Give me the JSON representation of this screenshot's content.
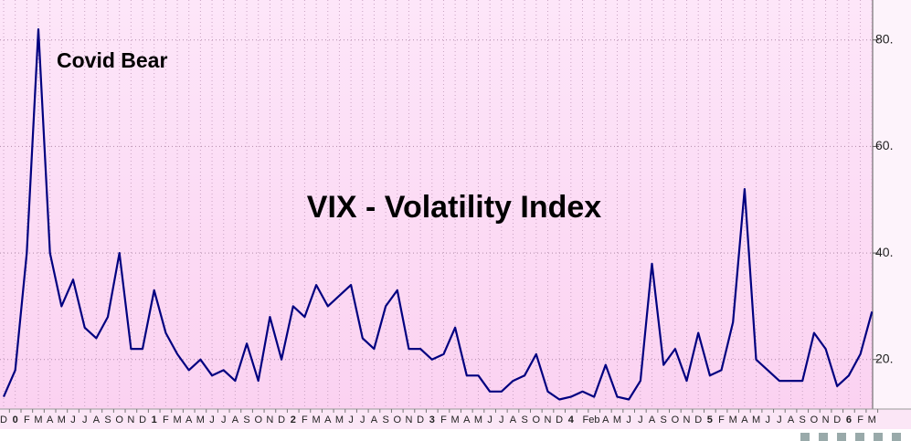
{
  "chart_data": {
    "type": "line",
    "title": "VIX - Volatility Index",
    "annotations": [
      "Covid Bear"
    ],
    "categories": [
      "D",
      "0",
      "F",
      "M",
      "A",
      "M",
      "J",
      "J",
      "A",
      "S",
      "O",
      "N",
      "D",
      "1",
      "F",
      "M",
      "A",
      "M",
      "J",
      "J",
      "A",
      "S",
      "O",
      "N",
      "D",
      "2",
      "F",
      "M",
      "A",
      "M",
      "J",
      "J",
      "A",
      "S",
      "O",
      "N",
      "D",
      "3",
      "F",
      "M",
      "A",
      "M",
      "J",
      "J",
      "A",
      "S",
      "O",
      "N",
      "D",
      "4",
      "Feb",
      null,
      "A",
      "M",
      "J",
      "J",
      "A",
      "S",
      "O",
      "N",
      "D",
      "5",
      "F",
      "M",
      "A",
      "M",
      "J",
      "J",
      "A",
      "S",
      "O",
      "N",
      "D",
      "6",
      "F",
      "M"
    ],
    "series": [
      {
        "color": "#000080",
        "values": [
          13,
          18,
          40,
          82,
          40,
          30,
          35,
          26,
          24,
          28,
          40,
          22,
          22,
          33,
          25,
          21,
          18,
          20,
          17,
          18,
          16,
          23,
          16,
          28,
          20,
          30,
          28,
          34,
          30,
          32,
          34,
          24,
          22,
          30,
          33,
          22,
          22,
          20,
          21,
          26,
          17,
          17,
          14,
          14,
          16,
          17,
          21,
          14,
          12.5,
          13,
          14,
          13,
          19,
          13,
          12.5,
          16,
          38,
          19,
          22,
          16,
          25,
          17,
          18,
          27,
          52,
          20,
          18,
          16,
          16,
          16,
          25,
          22,
          15,
          17,
          21,
          29
        ]
      }
    ],
    "ylim": [
      10.7,
      87.5
    ],
    "yticks": [
      {
        "value": 20,
        "label": "20."
      },
      {
        "value": 40,
        "label": "40."
      },
      {
        "value": 60,
        "label": "60."
      },
      {
        "value": 80,
        "label": "80."
      }
    ],
    "grid": true
  }
}
